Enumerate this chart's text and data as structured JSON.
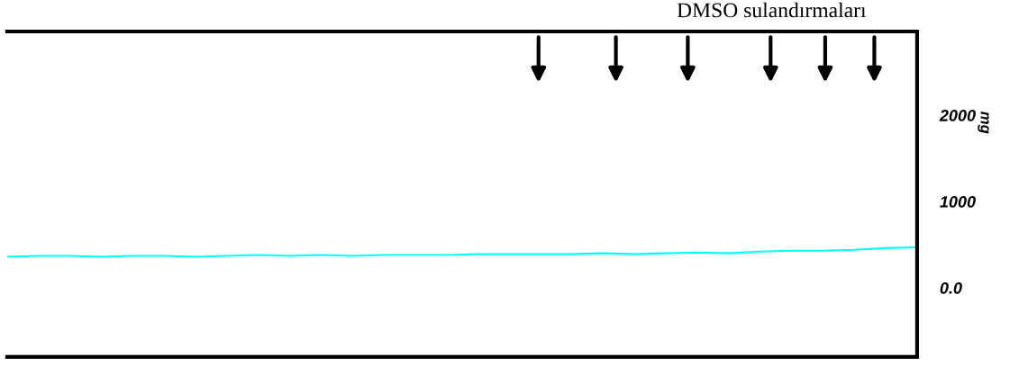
{
  "chart_data": {
    "type": "line",
    "title": "DMSO sulandırmaları",
    "ylabel": "mg",
    "categories": [
      null,
      null,
      null,
      null,
      null,
      null,
      null,
      null,
      null,
      null,
      null,
      null,
      null,
      null,
      null,
      null,
      null,
      null,
      null,
      null,
      null,
      null,
      null,
      null,
      null,
      null,
      null,
      null,
      null,
      null
    ],
    "series": [
      {
        "color": "#00ffff",
        "values": [
          360,
          370,
          370,
          360,
          370,
          370,
          360,
          370,
          380,
          370,
          380,
          370,
          380,
          380,
          380,
          390,
          390,
          390,
          390,
          400,
          390,
          400,
          410,
          400,
          420,
          430,
          430,
          440,
          460,
          470
        ]
      }
    ],
    "ylim": [
      -800,
      2970
    ],
    "yticks": [
      {
        "value": 0,
        "label": "0.0"
      },
      1000,
      2000
    ],
    "grid": false,
    "legend": false
  }
}
